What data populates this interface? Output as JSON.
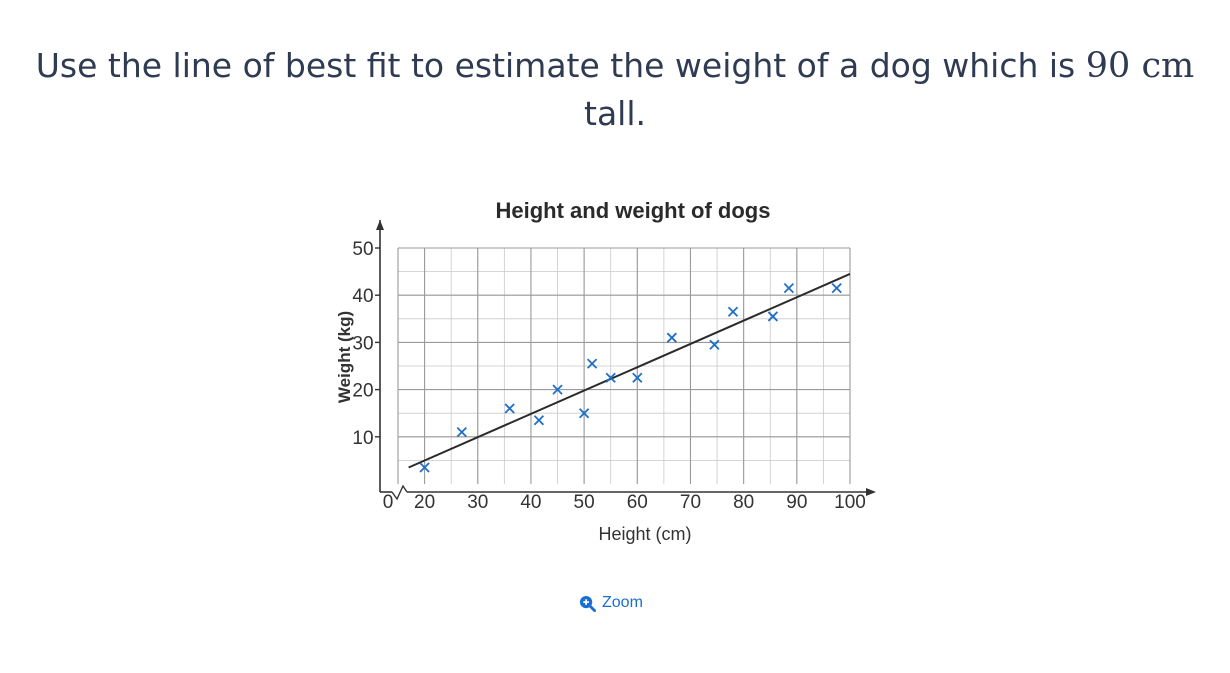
{
  "question": {
    "text_before": "Use the line of best fit to estimate the weight of a dog which is ",
    "math_value": "90",
    "math_unit": "cm",
    "text_after": " tall."
  },
  "zoom": {
    "label": "Zoom",
    "icon": "zoom-in-icon"
  },
  "colors": {
    "marker": "#1f6fc6",
    "line": "#2b2b2b",
    "grid": "#9a9a9a",
    "axis": "#333333"
  },
  "chart_data": {
    "type": "scatter",
    "title": "Height and weight of dogs",
    "xlabel": "Height (cm)",
    "ylabel": "Weight (kg)",
    "xlim": [
      15,
      100
    ],
    "ylim": [
      0,
      50
    ],
    "x_ticks": [
      20,
      30,
      40,
      50,
      60,
      70,
      80,
      90,
      100
    ],
    "y_ticks": [
      10,
      20,
      30,
      40,
      50
    ],
    "origin_label": "0",
    "axis_break": true,
    "grid": true,
    "x": [
      20,
      27,
      36,
      41.5,
      45,
      50,
      51.5,
      55,
      60,
      66.5,
      74.5,
      78,
      85.5,
      88.5,
      97.5
    ],
    "y": [
      3.5,
      11,
      16,
      13.5,
      20,
      15,
      25.5,
      22.5,
      22.5,
      31,
      29.5,
      36.5,
      35.5,
      41.5,
      41.5
    ],
    "best_fit_line": {
      "x": [
        17,
        100
      ],
      "y": [
        3.5,
        44.5
      ]
    }
  }
}
